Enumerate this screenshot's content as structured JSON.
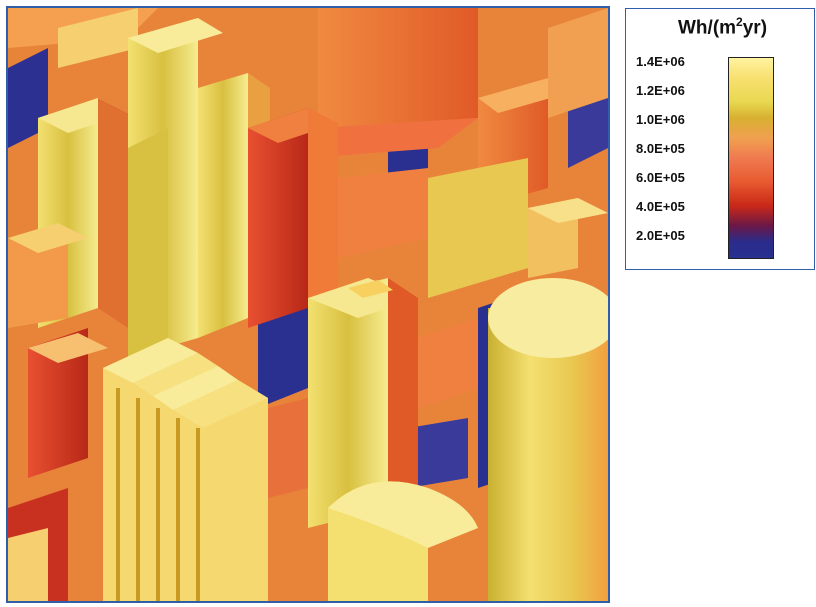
{
  "legend": {
    "unit_prefix": "Wh/(m",
    "unit_sup": "2",
    "unit_suffix": "yr)",
    "ticks": [
      "1.4E+06",
      "1.2E+06",
      "1.0E+06",
      "8.0E+05",
      "6.0E+05",
      "4.0E+05",
      "2.0E+05"
    ]
  },
  "colors": {
    "frame_border": "#2f5fa8",
    "high": "#fff4a0",
    "mid": "#f07a50",
    "low": "#283090"
  }
}
